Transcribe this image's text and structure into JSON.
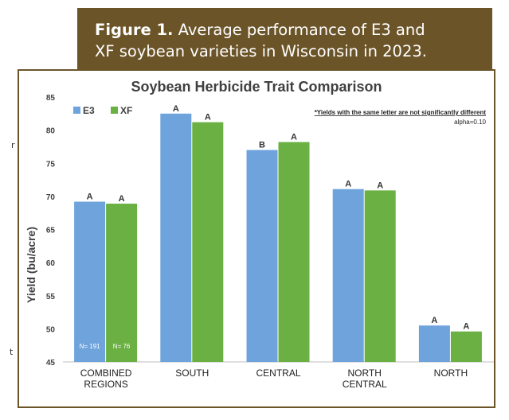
{
  "figure": {
    "label": "Figure 1.",
    "caption_line1": "Average performance of E3 and",
    "caption_line2": "XF soybean varieties in Wisconsin in 2023."
  },
  "colors": {
    "e3": "#6fa3dc",
    "xf": "#6ab042",
    "caption_bg": "#6b5428"
  },
  "chart_data": {
    "type": "bar",
    "title": "Soybean Herbicide Trait Comparison",
    "xlabel": "",
    "ylabel": "Yield (bu/acre)",
    "ylim": [
      45,
      85
    ],
    "yticks": [
      45,
      50,
      55,
      60,
      65,
      70,
      75,
      80,
      85
    ],
    "grid": false,
    "legend_position": "top-left",
    "categories": [
      [
        "COMBINED",
        "REGIONS"
      ],
      [
        "SOUTH"
      ],
      [
        "CENTRAL"
      ],
      [
        "NORTH",
        "CENTRAL"
      ],
      [
        "NORTH"
      ]
    ],
    "series": [
      {
        "name": "E3",
        "values": [
          69.2,
          82.5,
          77.0,
          71.1,
          50.5
        ],
        "letters": [
          "A",
          "A",
          "B",
          "A",
          "A"
        ]
      },
      {
        "name": "XF",
        "values": [
          68.9,
          81.2,
          78.2,
          70.9,
          49.6
        ],
        "letters": [
          "A",
          "A",
          "A",
          "A",
          "A"
        ]
      }
    ],
    "sample_sizes": [
      "N= 191",
      "N= 76"
    ],
    "annotation": "*Yields with the same letter are not significantly different",
    "alpha_note": "alpha=0.10"
  },
  "margin_marks": [
    "r",
    "t"
  ]
}
